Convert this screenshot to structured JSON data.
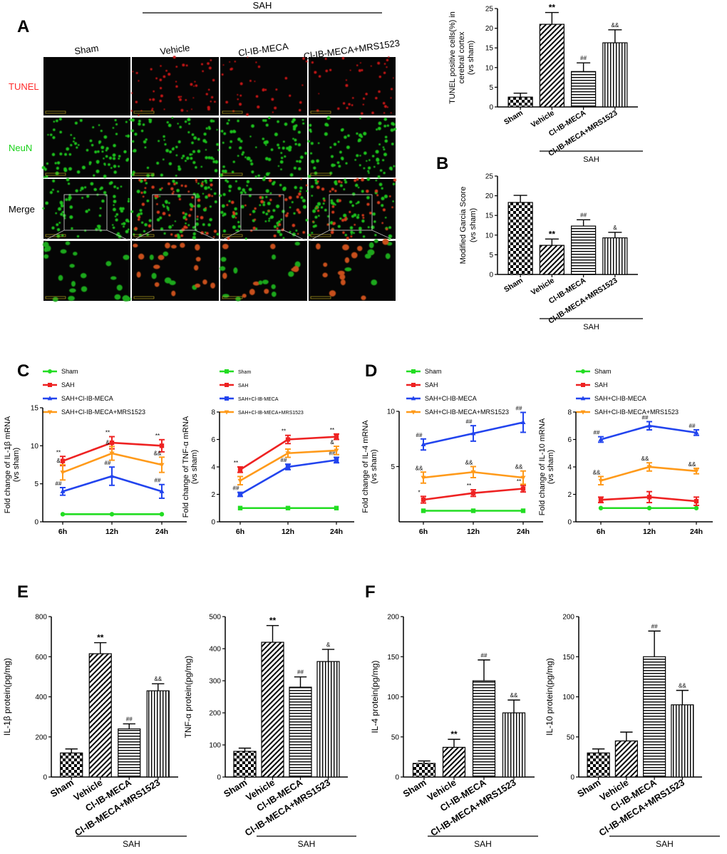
{
  "panel_letters": {
    "A": "A",
    "B": "B",
    "C": "C",
    "D": "D",
    "E": "E",
    "F": "F"
  },
  "group_label": "SAH",
  "micrograph": {
    "columns": [
      "Sham",
      "Vehicle",
      "Cl-IB-MECA",
      "Cl-IB-MECA+MRS1523"
    ],
    "rows": [
      {
        "label": "TUNEL",
        "color": "#ff2a2a"
      },
      {
        "label": "NeuN",
        "color": "#19d219"
      },
      {
        "label": "Merge",
        "color": "#000000"
      },
      {
        "label": "",
        "color": "#000000"
      }
    ]
  },
  "colors": {
    "sham": "#22dd22",
    "sah": "#ee2222",
    "cl": "#2244ee",
    "mrs": "#ff9a1a"
  },
  "chart_data": [
    {
      "id": "tunel",
      "type": "bar",
      "categories": [
        "Sham",
        "Vehicle",
        "Cl-IB-MECA",
        "Cl-IB-MECA+MRS1523"
      ],
      "values": [
        2.5,
        21,
        9,
        16.3
      ],
      "errors": [
        1.0,
        3.0,
        2.2,
        3.3
      ],
      "annotations": [
        "",
        "**",
        "##",
        "&&"
      ],
      "patterns": [
        "check",
        "diag",
        "horiz",
        "vert"
      ],
      "ylabel_lines": [
        "TUNEL positive cells(%) in",
        "cerebral cortex",
        "(vs sham)"
      ],
      "ylim": [
        0,
        25
      ],
      "yticks": [
        0,
        5,
        10,
        15,
        20,
        25
      ],
      "group_label": "SAH"
    },
    {
      "id": "garcia",
      "type": "bar",
      "categories": [
        "Sham",
        "Vehicle",
        "Cl-IB-MECA",
        "Cl-IB-MECA+MRS1523"
      ],
      "values": [
        18.3,
        7.4,
        12.3,
        9.3
      ],
      "errors": [
        1.8,
        1.6,
        1.6,
        1.4
      ],
      "annotations": [
        "",
        "**",
        "##",
        "&"
      ],
      "patterns": [
        "check",
        "diag",
        "horiz",
        "vert"
      ],
      "ylabel_lines": [
        "Modified Garcia Score",
        "(vs sham)"
      ],
      "ylim": [
        0,
        25
      ],
      "yticks": [
        0,
        5,
        10,
        15,
        20,
        25
      ],
      "group_label": "SAH"
    },
    {
      "id": "il1b_mrna",
      "type": "line",
      "x": [
        "6h",
        "12h",
        "24h"
      ],
      "ylabel": "Fold change of IL-1β mRNA (vs sham)",
      "ylim": [
        0,
        15
      ],
      "yticks": [
        0,
        5,
        10,
        15
      ],
      "legend": [
        "Sham",
        "SAH",
        "SAH+Cl-IB-MECA",
        "SAH+Cl-IB-MECA+MRS1523"
      ],
      "series": [
        {
          "name": "Sham",
          "color": "#22dd22",
          "marker": "circle",
          "values": [
            1,
            1,
            1
          ],
          "errors": [
            0,
            0,
            0
          ],
          "annotations": [
            "",
            "",
            ""
          ]
        },
        {
          "name": "SAH",
          "color": "#ee2222",
          "marker": "square",
          "values": [
            8,
            10.4,
            10
          ],
          "errors": [
            0.6,
            0.8,
            0.8
          ],
          "annotations": [
            "**",
            "**",
            "**"
          ]
        },
        {
          "name": "SAH+Cl-IB-MECA",
          "color": "#2244ee",
          "marker": "triangle",
          "values": [
            4,
            6,
            4
          ],
          "errors": [
            0.5,
            1.2,
            0.9
          ],
          "annotations": [
            "##",
            "##",
            "##"
          ]
        },
        {
          "name": "SAH+Cl-IB-MECA+MRS1523",
          "color": "#ff9a1a",
          "marker": "triangle-down",
          "values": [
            6.5,
            9,
            7.5
          ],
          "errors": [
            1.0,
            0.9,
            1.0
          ],
          "annotations": [
            "&",
            "&",
            "&&"
          ]
        }
      ]
    },
    {
      "id": "tnfa_mrna",
      "type": "line",
      "x": [
        "6h",
        "12h",
        "24h"
      ],
      "ylabel": "Fold change of TNF-α mRNA (vs sham)",
      "ylim": [
        0,
        8
      ],
      "yticks": [
        0,
        2,
        4,
        6,
        8
      ],
      "legend": [
        "Sham",
        "SAH",
        "SAH+Cl-IB-MECA",
        "SAH+Cl-IB-MECA+MRS1523"
      ],
      "series": [
        {
          "name": "Sham",
          "color": "#22dd22",
          "marker": "square",
          "values": [
            1,
            1,
            1
          ],
          "errors": [
            0,
            0,
            0
          ],
          "annotations": [
            "",
            "",
            ""
          ]
        },
        {
          "name": "SAH",
          "color": "#ee2222",
          "marker": "square",
          "values": [
            3.8,
            6,
            6.2
          ],
          "errors": [
            0.2,
            0.3,
            0.2
          ],
          "annotations": [
            "**",
            "**",
            "**"
          ]
        },
        {
          "name": "SAH+Cl-IB-MECA",
          "color": "#2244ee",
          "marker": "square",
          "values": [
            2,
            4,
            4.5
          ],
          "errors": [
            0.15,
            0.2,
            0.2
          ],
          "annotations": [
            "##",
            "##",
            "##"
          ]
        },
        {
          "name": "SAH+Cl-IB-MECA+MRS1523",
          "color": "#ff9a1a",
          "marker": "triangle-down",
          "values": [
            3,
            5,
            5.2
          ],
          "errors": [
            0.3,
            0.3,
            0.3
          ],
          "annotations": [
            "",
            "",
            "&"
          ]
        }
      ]
    },
    {
      "id": "il4_mrna",
      "type": "line",
      "x": [
        "6h",
        "12h",
        "24h"
      ],
      "ylabel": "Fold change of IL-4 mRNA (vs sham)",
      "ylim": [
        0,
        10
      ],
      "yticks": [
        5,
        10
      ],
      "legend": [
        "Sham",
        "SAH",
        "SAH+Cl-IB-MECA",
        "SAH+Cl-IB-MECA+MRS1523"
      ],
      "series": [
        {
          "name": "Sham",
          "color": "#22dd22",
          "marker": "square",
          "values": [
            1,
            1,
            1
          ],
          "errors": [
            0,
            0,
            0
          ],
          "annotations": [
            "",
            "",
            ""
          ]
        },
        {
          "name": "SAH",
          "color": "#ee2222",
          "marker": "square",
          "values": [
            2,
            2.6,
            3
          ],
          "errors": [
            0.3,
            0.3,
            0.3
          ],
          "annotations": [
            "*",
            "**",
            "**"
          ]
        },
        {
          "name": "SAH+Cl-IB-MECA",
          "color": "#2244ee",
          "marker": "triangle",
          "values": [
            7,
            8,
            9
          ],
          "errors": [
            0.5,
            0.7,
            0.9
          ],
          "annotations": [
            "##",
            "##",
            "##"
          ]
        },
        {
          "name": "SAH+Cl-IB-MECA+MRS1523",
          "color": "#ff9a1a",
          "marker": "triangle-down",
          "values": [
            4,
            4.5,
            4
          ],
          "errors": [
            0.5,
            0.5,
            0.6
          ],
          "annotations": [
            "&&",
            "&&",
            "&&"
          ]
        }
      ]
    },
    {
      "id": "il10_mrna",
      "type": "line",
      "x": [
        "6h",
        "12h",
        "24h"
      ],
      "ylabel": "Fold change of IL-10 mRNA (vs sham)",
      "ylim": [
        0,
        8
      ],
      "yticks": [
        0,
        2,
        4,
        6,
        8
      ],
      "legend": [
        "Sham",
        "SAH",
        "SAH+Cl-IB-MECA",
        "SAH+Cl-IB-MECA+MRS1523"
      ],
      "series": [
        {
          "name": "Sham",
          "color": "#22dd22",
          "marker": "circle",
          "values": [
            1,
            1,
            1
          ],
          "errors": [
            0,
            0,
            0
          ],
          "annotations": [
            "",
            "",
            ""
          ]
        },
        {
          "name": "SAH",
          "color": "#ee2222",
          "marker": "square",
          "values": [
            1.6,
            1.8,
            1.5
          ],
          "errors": [
            0.2,
            0.4,
            0.3
          ],
          "annotations": [
            "",
            "",
            ""
          ]
        },
        {
          "name": "SAH+Cl-IB-MECA",
          "color": "#2244ee",
          "marker": "triangle",
          "values": [
            6,
            7,
            6.5
          ],
          "errors": [
            0.2,
            0.3,
            0.2
          ],
          "annotations": [
            "##",
            "##",
            "##"
          ]
        },
        {
          "name": "SAH+Cl-IB-MECA+MRS1523",
          "color": "#ff9a1a",
          "marker": "triangle-down",
          "values": [
            3,
            4,
            3.7
          ],
          "errors": [
            0.3,
            0.3,
            0.2
          ],
          "annotations": [
            "&&",
            "&&",
            "&&"
          ]
        }
      ]
    },
    {
      "id": "il1b_protein",
      "type": "bar",
      "categories": [
        "Sham",
        "Vehicle",
        "Cl-IB-MECA",
        "Cl-IB-MECA+MRS1523"
      ],
      "values": [
        120,
        615,
        240,
        430
      ],
      "errors": [
        20,
        55,
        25,
        35
      ],
      "annotations": [
        "",
        "**",
        "##",
        "&&"
      ],
      "patterns": [
        "check",
        "diag",
        "horiz",
        "vert"
      ],
      "ylabel_lines": [
        "IL-1β protein(pg/mg)"
      ],
      "ylim": [
        0,
        800
      ],
      "yticks": [
        0,
        200,
        400,
        600,
        800
      ],
      "group_label": "SAH"
    },
    {
      "id": "tnfa_protein",
      "type": "bar",
      "categories": [
        "Sham",
        "Vehicle",
        "Cl-IB-MECA",
        "Cl-IB-MECA+MRS1523"
      ],
      "values": [
        80,
        420,
        280,
        360
      ],
      "errors": [
        10,
        52,
        32,
        38
      ],
      "annotations": [
        "",
        "**",
        "##",
        "&"
      ],
      "patterns": [
        "check",
        "diag",
        "horiz",
        "vert"
      ],
      "ylabel_lines": [
        "TNF-α protein(pg/mg)"
      ],
      "ylim": [
        0,
        500
      ],
      "yticks": [
        0,
        100,
        200,
        300,
        400,
        500
      ],
      "group_label": "SAH"
    },
    {
      "id": "il4_protein",
      "type": "bar",
      "categories": [
        "Sham",
        "Vehicle",
        "Cl-IB-MECA",
        "Cl-IB-MECA+MRS1523"
      ],
      "values": [
        17,
        37,
        120,
        80
      ],
      "errors": [
        3,
        10,
        26,
        16
      ],
      "annotations": [
        "",
        "**",
        "##",
        "&&"
      ],
      "patterns": [
        "check",
        "diag",
        "horiz",
        "vert"
      ],
      "ylabel_lines": [
        "IL-4 protein(pg/mg)"
      ],
      "ylim": [
        0,
        200
      ],
      "yticks": [
        0,
        50,
        100,
        150,
        200
      ],
      "group_label": "SAH"
    },
    {
      "id": "il10_protein",
      "type": "bar",
      "categories": [
        "Sham",
        "Vehicle",
        "Cl-IB-MECA",
        "Cl-IB-MECA+MRS1523"
      ],
      "values": [
        30,
        45,
        150,
        90
      ],
      "errors": [
        5,
        11,
        32,
        18
      ],
      "annotations": [
        "",
        "",
        "##",
        "&&"
      ],
      "patterns": [
        "check",
        "diag",
        "horiz",
        "vert"
      ],
      "ylabel_lines": [
        "IL-10 protein(pg/mg)"
      ],
      "ylim": [
        0,
        200
      ],
      "yticks": [
        0,
        50,
        100,
        150,
        200
      ],
      "group_label": "SAH"
    }
  ]
}
